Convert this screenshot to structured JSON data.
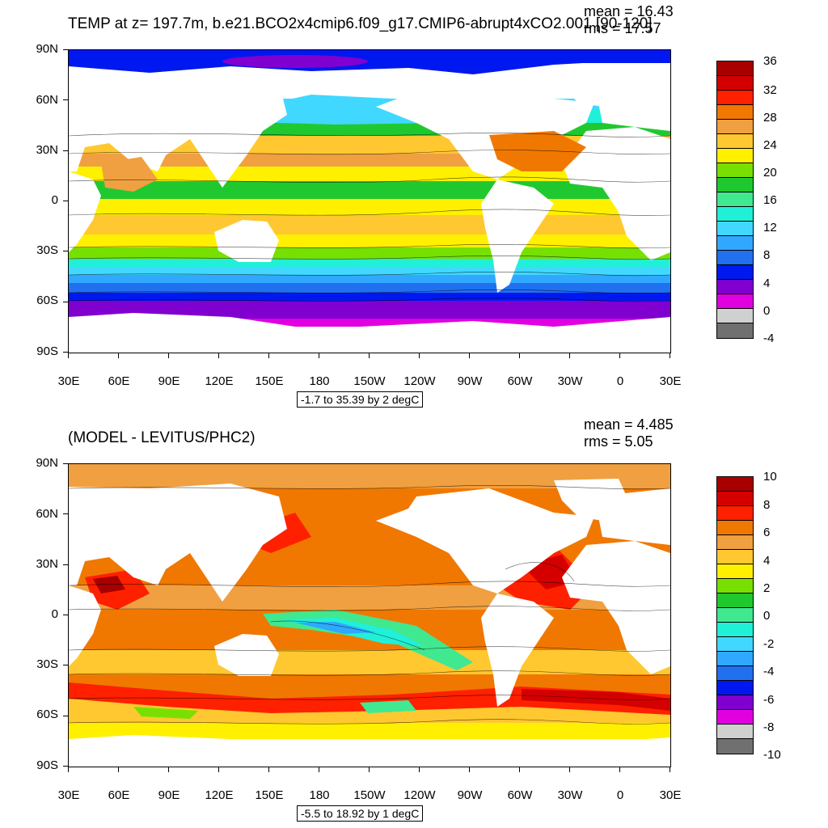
{
  "panel_top": {
    "title": "TEMP at z= 197.7m, b.e21.BCO2x4cmip6.f09_g17.CMIP6-abrupt4xCO2.001 [90-120]",
    "mean": "mean = 16.43",
    "rms": "rms = 17.57",
    "info": "-1.7 to 35.39 by 2 degC",
    "lat_labels": [
      "90N",
      "60N",
      "30N",
      "0",
      "30S",
      "60S",
      "90S"
    ],
    "lon_labels": [
      "30E",
      "60E",
      "90E",
      "120E",
      "150E",
      "180",
      "150W",
      "120W",
      "90W",
      "60W",
      "30W",
      "0",
      "30E"
    ],
    "colorbar_labels": [
      "36",
      "32",
      "28",
      "24",
      "20",
      "16",
      "12",
      "8",
      "4",
      "0",
      "-4"
    ],
    "colorbar_colors": [
      "#a80000",
      "#d40000",
      "#ff2000",
      "#f07800",
      "#f0a040",
      "#ffc830",
      "#fff000",
      "#78e000",
      "#20c830",
      "#40e890",
      "#20f0d8",
      "#40d8ff",
      "#30a8ff",
      "#2070f0",
      "#0018f0",
      "#8000d0",
      "#e000e0",
      "#d0d0d0",
      "#707070"
    ]
  },
  "panel_bottom": {
    "title": "(MODEL - LEVITUS/PHC2)",
    "mean": "mean = 4.485",
    "rms": "rms = 5.05",
    "info": "-5.5 to 18.92 by 1 degC",
    "lat_labels": [
      "90N",
      "60N",
      "30N",
      "0",
      "30S",
      "60S",
      "90S"
    ],
    "lon_labels": [
      "30E",
      "60E",
      "90E",
      "120E",
      "150E",
      "180",
      "150W",
      "120W",
      "90W",
      "60W",
      "30W",
      "0",
      "30E"
    ],
    "colorbar_labels": [
      "10",
      "8",
      "6",
      "4",
      "2",
      "0",
      "-2",
      "-4",
      "-6",
      "-8",
      "-10"
    ],
    "colorbar_colors": [
      "#a80000",
      "#d40000",
      "#ff2000",
      "#f07800",
      "#f0a040",
      "#ffc830",
      "#fff000",
      "#78e000",
      "#20c830",
      "#40e890",
      "#20f0d8",
      "#40d8ff",
      "#30a8ff",
      "#2070f0",
      "#0018f0",
      "#8000d0",
      "#e000e0",
      "#d0d0d0",
      "#707070"
    ]
  }
}
